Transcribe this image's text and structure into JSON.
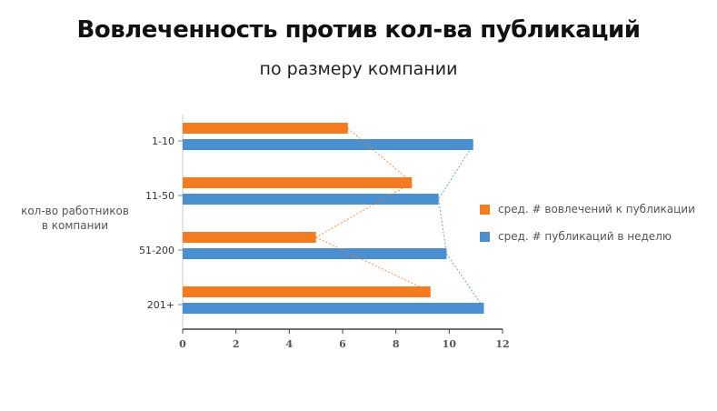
{
  "title": "Вовлеченность против кол-ва публикаций",
  "subtitle": "по размеру компании",
  "chart_data": {
    "type": "bar",
    "orientation": "horizontal",
    "ylabel": "кол-во работников\nв компании",
    "categories": [
      "1-10",
      "11-50",
      "51-200",
      "201+"
    ],
    "series": [
      {
        "name": "сред. # вовлечений к публикации",
        "color": "#f47b20",
        "values": [
          6.2,
          8.6,
          5.0,
          9.3
        ]
      },
      {
        "name": "сред. # публикаций в неделю",
        "color": "#4a90d0",
        "values": [
          10.9,
          9.6,
          9.9,
          11.3
        ]
      }
    ],
    "xlim": [
      0,
      12
    ],
    "xticks": [
      "0",
      "2",
      "4",
      "6",
      "8",
      "10",
      "12"
    ],
    "grid": false,
    "connector_lines": "dashed",
    "legend_position": "right"
  }
}
